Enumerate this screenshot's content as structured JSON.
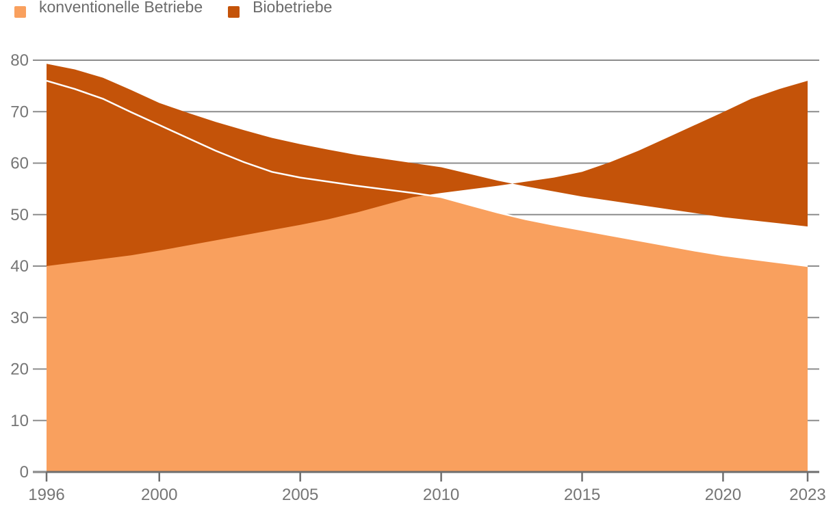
{
  "chart_data": {
    "type": "area",
    "stacked": true,
    "title": "",
    "xlabel": "",
    "ylabel": "",
    "x": [
      1996,
      1997,
      1998,
      1999,
      2000,
      2001,
      2002,
      2003,
      2004,
      2005,
      2006,
      2007,
      2008,
      2009,
      2010,
      2011,
      2012,
      2013,
      2014,
      2015,
      2016,
      2017,
      2018,
      2019,
      2020,
      2021,
      2022,
      2023
    ],
    "series": [
      {
        "name": "konventionelle Betriebe",
        "color": "#F9A05E",
        "values": [
          76.0,
          74.4,
          72.5,
          69.9,
          67.4,
          64.9,
          62.4,
          60.2,
          58.3,
          57.2,
          56.4,
          55.6,
          54.9,
          54.2,
          53.4,
          51.9,
          50.4,
          49.1,
          48.0,
          47.0,
          46.0,
          45.0,
          44.0,
          43.0,
          42.1,
          41.4,
          40.7,
          40.0
        ]
      },
      {
        "name": "Biobetriebe",
        "color": "#C45309",
        "values": [
          3.3,
          3.8,
          4.1,
          4.3,
          4.3,
          4.9,
          5.6,
          6.2,
          6.6,
          6.5,
          6.2,
          6.0,
          5.9,
          5.8,
          5.8,
          6.0,
          6.2,
          6.4,
          6.5,
          6.5,
          6.7,
          6.9,
          7.1,
          7.3,
          7.4,
          7.5,
          7.6,
          7.7
        ]
      }
    ],
    "totals": [
      79.3,
      78.2,
      76.6,
      74.2,
      71.7,
      69.8,
      68.0,
      66.4,
      64.9,
      63.7,
      62.6,
      61.6,
      60.8,
      60.0,
      59.2,
      57.9,
      56.6,
      55.5,
      54.5,
      53.5,
      52.7,
      51.9,
      51.1,
      50.3,
      49.5,
      48.9,
      48.3,
      47.7
    ],
    "ylim": [
      0,
      80
    ],
    "yticks": [
      0,
      10,
      20,
      30,
      40,
      50,
      60,
      70,
      80
    ],
    "xticks": [
      1996,
      2000,
      2005,
      2010,
      2015,
      2020,
      2023
    ],
    "grid": "horizontal",
    "legend_position": "top-left",
    "divider_color": "#ffffff",
    "gridline_color": "#8c8c8c",
    "axisline_color": "#6e6e6e",
    "label_color": "#757575"
  }
}
